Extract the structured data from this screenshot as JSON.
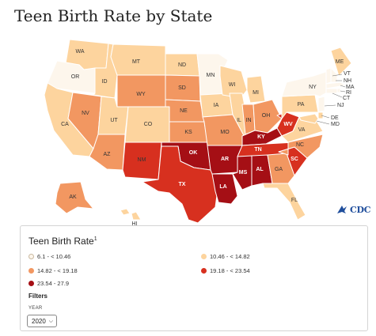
{
  "title": "Teen Birth Rate by State",
  "colors": {
    "bin1": "#fdf6ec",
    "bin2": "#fdd49e",
    "bin3": "#f29761",
    "bin4": "#d7301f",
    "bin5": "#a50f15"
  },
  "logo_text": "CDC",
  "legend": {
    "title": "Teen Birth Rate",
    "footnote": "1",
    "items": [
      {
        "label": "6.1 - < 10.46",
        "color": "#fdf6ec"
      },
      {
        "label": "10.46 - < 14.82",
        "color": "#fdd49e"
      },
      {
        "label": "14.82 - < 19.18",
        "color": "#f29761"
      },
      {
        "label": "19.18 - < 23.54",
        "color": "#d7301f"
      },
      {
        "label": "23.54 - 27.9",
        "color": "#a50f15"
      }
    ]
  },
  "filters": {
    "heading": "Filters",
    "year_label": "YEAR",
    "year_value": "2020"
  },
  "states": [
    {
      "abbr": "WA",
      "bin": 2
    },
    {
      "abbr": "OR",
      "bin": 1
    },
    {
      "abbr": "CA",
      "bin": 2
    },
    {
      "abbr": "ID",
      "bin": 2
    },
    {
      "abbr": "NV",
      "bin": 3
    },
    {
      "abbr": "AZ",
      "bin": 3
    },
    {
      "abbr": "UT",
      "bin": 2
    },
    {
      "abbr": "MT",
      "bin": 2
    },
    {
      "abbr": "WY",
      "bin": 3
    },
    {
      "abbr": "CO",
      "bin": 2
    },
    {
      "abbr": "NM",
      "bin": 4
    },
    {
      "abbr": "ND",
      "bin": 2
    },
    {
      "abbr": "SD",
      "bin": 3
    },
    {
      "abbr": "NE",
      "bin": 3
    },
    {
      "abbr": "KS",
      "bin": 3
    },
    {
      "abbr": "OK",
      "bin": 5
    },
    {
      "abbr": "TX",
      "bin": 4
    },
    {
      "abbr": "MN",
      "bin": 1
    },
    {
      "abbr": "IA",
      "bin": 2
    },
    {
      "abbr": "MO",
      "bin": 3
    },
    {
      "abbr": "AR",
      "bin": 5
    },
    {
      "abbr": "LA",
      "bin": 5
    },
    {
      "abbr": "WI",
      "bin": 2
    },
    {
      "abbr": "IL",
      "bin": 2
    },
    {
      "abbr": "MI",
      "bin": 2
    },
    {
      "abbr": "IN",
      "bin": 3
    },
    {
      "abbr": "OH",
      "bin": 3
    },
    {
      "abbr": "KY",
      "bin": 5
    },
    {
      "abbr": "TN",
      "bin": 4
    },
    {
      "abbr": "MS",
      "bin": 5
    },
    {
      "abbr": "AL",
      "bin": 5
    },
    {
      "abbr": "WV",
      "bin": 4
    },
    {
      "abbr": "GA",
      "bin": 3
    },
    {
      "abbr": "FL",
      "bin": 2
    },
    {
      "abbr": "SC",
      "bin": 4
    },
    {
      "abbr": "NC",
      "bin": 3
    },
    {
      "abbr": "VA",
      "bin": 2
    },
    {
      "abbr": "PA",
      "bin": 2
    },
    {
      "abbr": "NY",
      "bin": 1
    },
    {
      "abbr": "ME",
      "bin": 2
    },
    {
      "abbr": "VT",
      "bin": 1
    },
    {
      "abbr": "NH",
      "bin": 1
    },
    {
      "abbr": "MA",
      "bin": 1
    },
    {
      "abbr": "RI",
      "bin": 1
    },
    {
      "abbr": "CT",
      "bin": 1
    },
    {
      "abbr": "NJ",
      "bin": 1
    },
    {
      "abbr": "DE",
      "bin": 2
    },
    {
      "abbr": "MD",
      "bin": 2
    },
    {
      "abbr": "AK",
      "bin": 3
    },
    {
      "abbr": "HI",
      "bin": 2
    }
  ]
}
